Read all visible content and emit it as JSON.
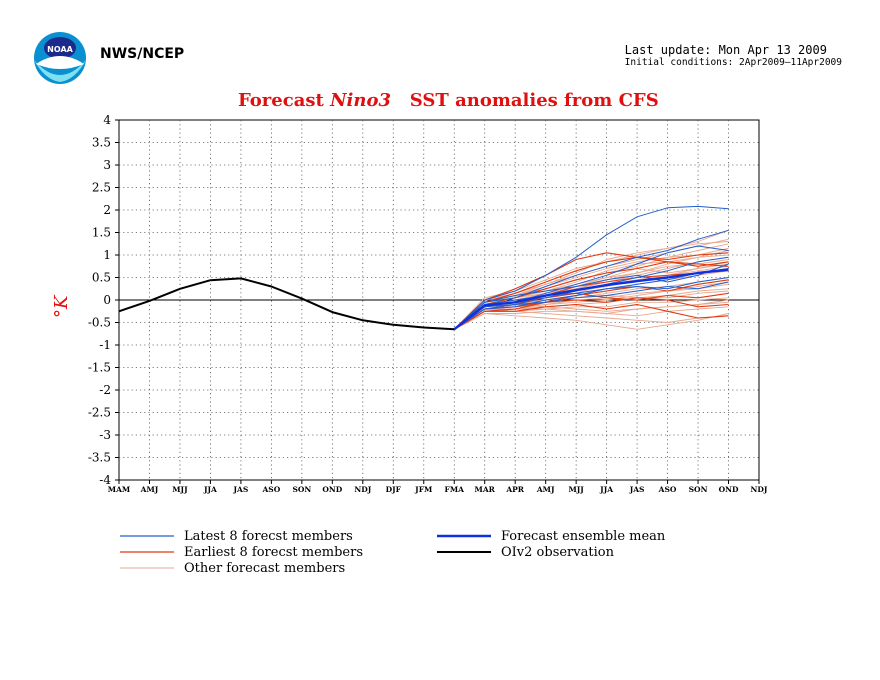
{
  "header": {
    "agency": "NWS/NCEP",
    "last_update": "Last update: Mon Apr 13 2009",
    "initial_conditions": "Initial conditions: 2Apr2009–11Apr2009"
  },
  "colors": {
    "latest": "#2060d0",
    "earliest": "#e03a10",
    "other": "#e8a890",
    "mean": "#1030e0",
    "observation": "#000000",
    "title": "#e01010"
  },
  "chart_data": {
    "type": "line",
    "title_prefix": "Forecast ",
    "title_region": "Nino3",
    "title_suffix": "   SST anomalies from CFS",
    "ylabel": "°K",
    "ylim": [
      -4,
      4
    ],
    "yticks": [
      "4",
      "3.5",
      "3",
      "2.5",
      "2",
      "1.5",
      "1",
      "0.5",
      "0",
      "-0.5",
      "-1",
      "-1.5",
      "-2",
      "-2.5",
      "-3",
      "-3.5",
      "-4"
    ],
    "categories": [
      "MAM",
      "AMJ",
      "MJJ",
      "JJA",
      "JAS",
      "ASO",
      "SON",
      "OND",
      "NDJ",
      "DJF",
      "JFM",
      "FMA",
      "MAR",
      "APR",
      "AMJ",
      "MJJ",
      "JJA",
      "JAS",
      "ASO",
      "SON",
      "OND",
      "NDJ"
    ],
    "grid": true,
    "legend": [
      {
        "key": "latest",
        "label": "Latest 8 forecst members"
      },
      {
        "key": "earliest",
        "label": "Earliest 8 forecst members"
      },
      {
        "key": "other",
        "label": "Other forecast members"
      },
      {
        "key": "mean",
        "label": "Forecast ensemble mean"
      },
      {
        "key": "observation",
        "label": "OIv2 observation"
      }
    ],
    "observation": [
      [
        0,
        -0.25
      ],
      [
        1,
        -0.02
      ],
      [
        2,
        0.25
      ],
      [
        3,
        0.44
      ],
      [
        4,
        0.48
      ],
      [
        5,
        0.3
      ],
      [
        6,
        0.03
      ],
      [
        7,
        -0.27
      ],
      [
        8,
        -0.45
      ],
      [
        9,
        -0.55
      ],
      [
        10,
        -0.61
      ],
      [
        11,
        -0.65
      ]
    ],
    "forecast_x": [
      11,
      12,
      13,
      14,
      15,
      16,
      17,
      18,
      19,
      20
    ],
    "latest_members": [
      [
        -0.65,
        0.0,
        0.2,
        0.55,
        0.95,
        1.45,
        1.85,
        2.05,
        2.08,
        2.03
      ],
      [
        -0.65,
        -0.05,
        0.05,
        0.3,
        0.55,
        0.75,
        0.95,
        1.1,
        1.35,
        1.55
      ],
      [
        -0.65,
        -0.1,
        -0.05,
        0.15,
        0.35,
        0.55,
        0.8,
        1.05,
        1.2,
        1.1
      ],
      [
        -0.65,
        -0.15,
        -0.1,
        0.05,
        0.2,
        0.35,
        0.5,
        0.65,
        0.85,
        0.95
      ],
      [
        -0.65,
        -0.2,
        -0.15,
        0.0,
        0.1,
        0.25,
        0.35,
        0.45,
        0.6,
        0.7
      ],
      [
        -0.65,
        -0.05,
        0.1,
        0.2,
        0.3,
        0.45,
        0.55,
        0.4,
        0.55,
        0.8
      ],
      [
        -0.65,
        -0.1,
        0.0,
        0.1,
        0.15,
        0.25,
        0.3,
        0.25,
        0.4,
        0.5
      ],
      [
        -0.65,
        -0.2,
        -0.1,
        -0.05,
        0.05,
        0.1,
        0.2,
        0.3,
        0.25,
        0.4
      ]
    ],
    "earliest_members": [
      [
        -0.65,
        0.0,
        0.25,
        0.55,
        0.9,
        1.05,
        0.95,
        0.85,
        0.8,
        0.75
      ],
      [
        -0.65,
        -0.05,
        0.15,
        0.4,
        0.65,
        0.85,
        0.95,
        0.9,
        1.0,
        1.05
      ],
      [
        -0.65,
        -0.1,
        0.05,
        0.25,
        0.45,
        0.6,
        0.7,
        0.85,
        0.75,
        0.85
      ],
      [
        -0.65,
        -0.2,
        -0.1,
        0.1,
        0.3,
        0.4,
        0.5,
        0.55,
        0.6,
        0.65
      ],
      [
        -0.65,
        -0.25,
        -0.2,
        -0.05,
        0.1,
        0.2,
        0.3,
        0.2,
        0.35,
        0.45
      ],
      [
        -0.65,
        -0.15,
        -0.05,
        0.05,
        0.15,
        0.05,
        0.0,
        0.1,
        0.05,
        0.15
      ],
      [
        -0.65,
        -0.2,
        -0.15,
        -0.05,
        0.0,
        -0.05,
        0.05,
        0.0,
        -0.15,
        -0.1
      ],
      [
        -0.65,
        -0.25,
        -0.25,
        -0.15,
        -0.1,
        -0.2,
        -0.1,
        -0.25,
        -0.4,
        -0.35
      ]
    ],
    "other_members": [
      [
        -0.65,
        0.05,
        0.2,
        0.45,
        0.7,
        0.85,
        1.0,
        1.15,
        1.3,
        1.55
      ],
      [
        -0.65,
        0.0,
        0.15,
        0.35,
        0.55,
        0.75,
        0.9,
        1.05,
        1.2,
        1.35
      ],
      [
        -0.65,
        -0.05,
        0.1,
        0.25,
        0.45,
        0.6,
        0.75,
        0.95,
        1.1,
        1.25
      ],
      [
        -0.65,
        -0.1,
        0.05,
        0.2,
        0.35,
        0.5,
        0.6,
        0.8,
        0.95,
        1.1
      ],
      [
        -0.65,
        -0.1,
        0.0,
        0.15,
        0.25,
        0.4,
        0.55,
        0.7,
        0.85,
        0.95
      ],
      [
        -0.65,
        -0.15,
        -0.05,
        0.05,
        0.2,
        0.3,
        0.45,
        0.55,
        0.7,
        0.8
      ],
      [
        -0.65,
        -0.15,
        -0.1,
        0.0,
        0.1,
        0.2,
        0.35,
        0.45,
        0.55,
        0.65
      ],
      [
        -0.65,
        -0.2,
        -0.1,
        -0.05,
        0.05,
        0.15,
        0.25,
        0.3,
        0.4,
        0.5
      ],
      [
        -0.65,
        -0.2,
        -0.15,
        -0.1,
        0.0,
        0.05,
        0.15,
        0.2,
        0.25,
        0.35
      ],
      [
        -0.65,
        -0.25,
        -0.2,
        -0.15,
        -0.1,
        -0.05,
        0.05,
        0.05,
        0.15,
        0.2
      ],
      [
        -0.65,
        -0.25,
        -0.25,
        -0.2,
        -0.15,
        -0.15,
        -0.05,
        -0.05,
        0.0,
        0.05
      ],
      [
        -0.65,
        -0.3,
        -0.3,
        -0.25,
        -0.25,
        -0.3,
        -0.2,
        -0.15,
        -0.1,
        -0.05
      ],
      [
        -0.65,
        -0.3,
        -0.35,
        -0.4,
        -0.45,
        -0.55,
        -0.65,
        -0.55,
        -0.45,
        -0.3
      ],
      [
        -0.65,
        -0.2,
        -0.25,
        -0.3,
        -0.35,
        -0.4,
        -0.45,
        -0.5,
        -0.4,
        -0.35
      ],
      [
        -0.65,
        -0.15,
        -0.1,
        -0.15,
        -0.2,
        -0.25,
        -0.2,
        -0.15,
        -0.1,
        0.0
      ],
      [
        -0.65,
        -0.1,
        -0.05,
        0.0,
        0.05,
        0.1,
        0.05,
        0.1,
        0.2,
        0.25
      ],
      [
        -0.65,
        0.0,
        0.1,
        0.3,
        0.5,
        0.7,
        0.85,
        0.95,
        1.0,
        1.15
      ],
      [
        -0.65,
        -0.05,
        0.05,
        0.2,
        0.4,
        0.65,
        0.8,
        0.85,
        0.95,
        1.0
      ],
      [
        -0.65,
        -0.1,
        0.0,
        0.1,
        0.25,
        0.45,
        0.6,
        0.75,
        0.8,
        0.9
      ],
      [
        -0.65,
        -0.15,
        -0.05,
        0.05,
        0.15,
        0.35,
        0.45,
        0.55,
        0.65,
        0.75
      ],
      [
        -0.65,
        -0.25,
        -0.2,
        -0.1,
        -0.05,
        0.0,
        0.1,
        0.2,
        0.3,
        0.4
      ],
      [
        -0.65,
        -0.2,
        -0.2,
        -0.2,
        -0.25,
        -0.3,
        -0.35,
        -0.25,
        -0.2,
        -0.15
      ],
      [
        -0.65,
        -0.05,
        0.1,
        0.35,
        0.6,
        0.9,
        1.05,
        1.15,
        1.25,
        1.3
      ],
      [
        -0.65,
        -0.1,
        0.05,
        0.15,
        0.3,
        0.5,
        0.7,
        0.6,
        0.7,
        0.85
      ]
    ],
    "ensemble_mean": [
      -0.65,
      -0.12,
      -0.05,
      0.1,
      0.22,
      0.33,
      0.42,
      0.5,
      0.6,
      0.68
    ]
  }
}
